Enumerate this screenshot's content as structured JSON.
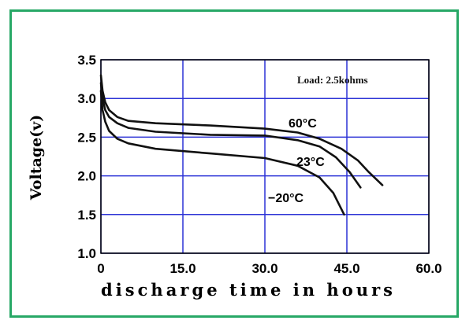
{
  "chart_data": {
    "type": "line",
    "xlabel": "discharge time in hours",
    "ylabel": "Voltage(v)",
    "annotation": "Load: 2.5kohms",
    "xlim": [
      0,
      60
    ],
    "ylim": [
      1.0,
      3.5
    ],
    "x_ticks": [
      "0",
      "15.0",
      "30.0",
      "45.0",
      "60.0"
    ],
    "y_ticks": [
      "1.0",
      "1.5",
      "2.0",
      "2.5",
      "3.0",
      "3.5"
    ],
    "grid": true,
    "colors": {
      "frame": "#27a866",
      "grid": "#2b32d6",
      "line": "#111111"
    },
    "series": [
      {
        "name": "60°C",
        "x": [
          0,
          0.3,
          0.8,
          1.5,
          3,
          5,
          10,
          20,
          30,
          36,
          40,
          44,
          47,
          49,
          51.5
        ],
        "y": [
          3.3,
          3.1,
          2.95,
          2.85,
          2.76,
          2.71,
          2.68,
          2.65,
          2.61,
          2.56,
          2.48,
          2.35,
          2.2,
          2.05,
          1.88
        ]
      },
      {
        "name": "23°C",
        "x": [
          0,
          0.3,
          0.8,
          1.5,
          3,
          5,
          10,
          20,
          30,
          36,
          40,
          43,
          45.5,
          47.5
        ],
        "y": [
          3.2,
          3.0,
          2.85,
          2.76,
          2.68,
          2.62,
          2.57,
          2.53,
          2.52,
          2.46,
          2.38,
          2.24,
          2.05,
          1.85
        ]
      },
      {
        "name": "−20°C",
        "x": [
          0,
          0.3,
          0.8,
          1.5,
          3,
          5,
          10,
          20,
          30,
          36,
          40,
          42.5,
          44.5
        ],
        "y": [
          3.1,
          2.85,
          2.7,
          2.58,
          2.48,
          2.42,
          2.35,
          2.29,
          2.23,
          2.13,
          1.98,
          1.78,
          1.5
        ]
      }
    ]
  }
}
